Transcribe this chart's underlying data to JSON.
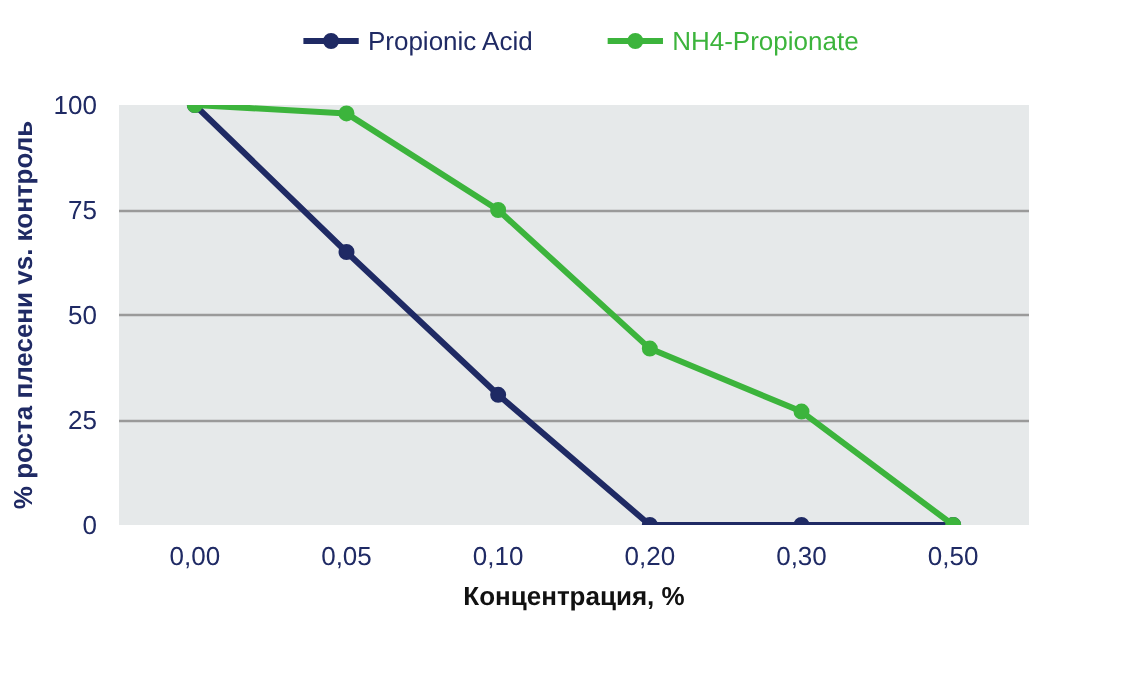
{
  "chart_data": {
    "type": "line",
    "xlabel": "Концентрация, %",
    "ylabel": "% роста плесени vs. контроль",
    "categories": [
      "0,00",
      "0,05",
      "0,10",
      "0,20",
      "0,30",
      "0,50"
    ],
    "series": [
      {
        "name": "Propionic Acid",
        "color": "#1f2a64",
        "values": [
          100,
          65,
          31,
          0,
          0,
          0
        ]
      },
      {
        "name": "NH4-Propionate",
        "color": "#3cb43c",
        "values": [
          100,
          98,
          75,
          42,
          27,
          0
        ]
      }
    ],
    "ylim": [
      0,
      100
    ],
    "yticks": [
      0,
      25,
      50,
      75,
      100
    ],
    "grid": "y",
    "legend": "top",
    "marker": "circle",
    "line_style": "solid"
  }
}
